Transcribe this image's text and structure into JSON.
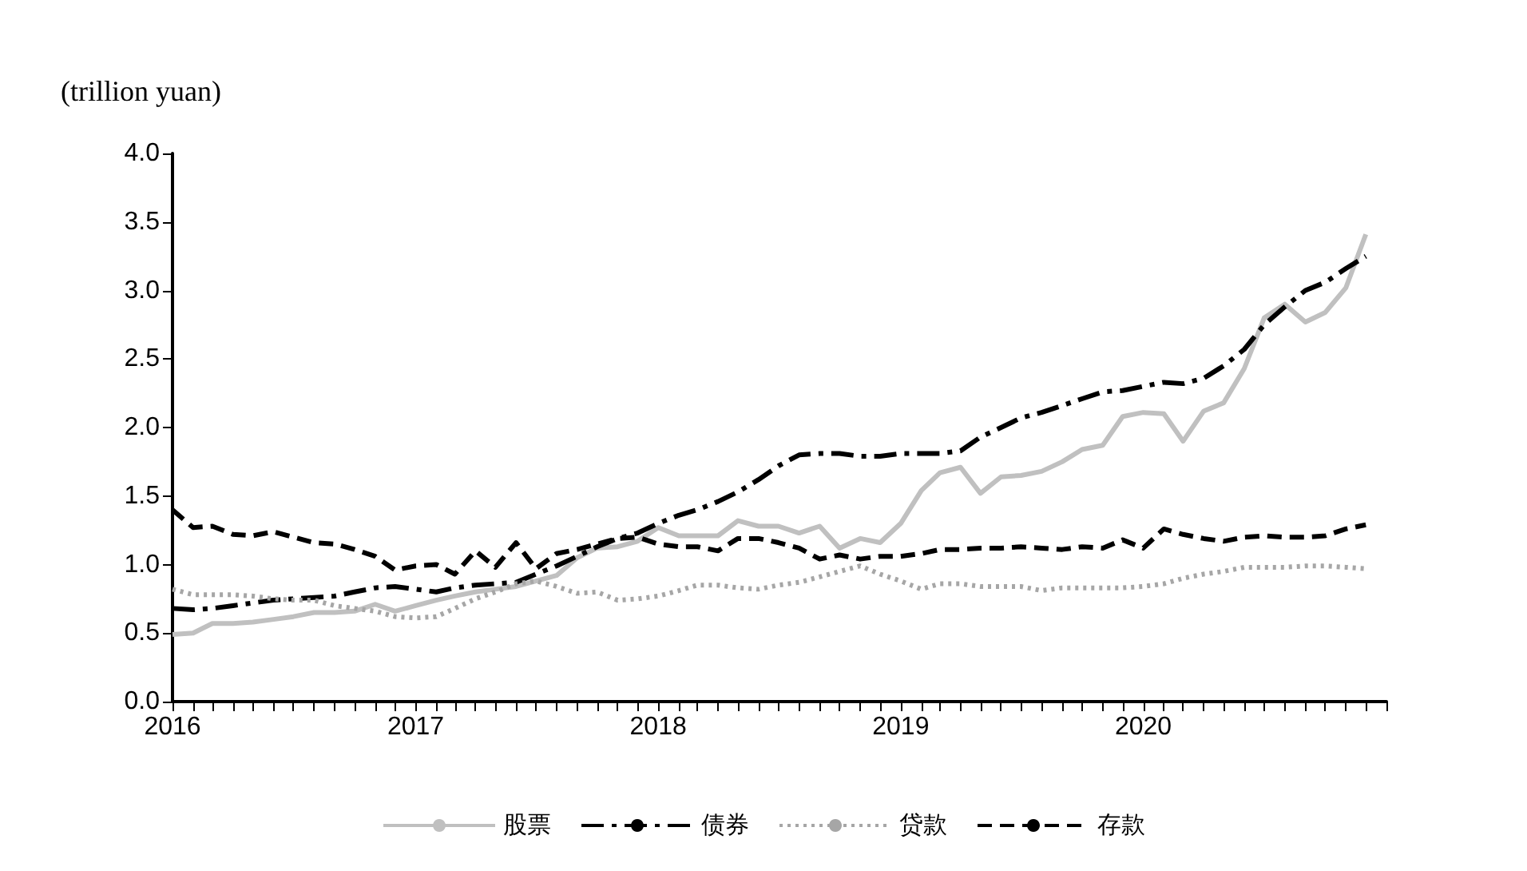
{
  "chart_data": {
    "type": "line",
    "ylabel": "(trillion yuan)",
    "x": [
      "2016-01",
      "2016-02",
      "2016-03",
      "2016-04",
      "2016-05",
      "2016-06",
      "2016-07",
      "2016-08",
      "2016-09",
      "2016-10",
      "2016-11",
      "2016-12",
      "2017-01",
      "2017-02",
      "2017-03",
      "2017-04",
      "2017-05",
      "2017-06",
      "2017-07",
      "2017-08",
      "2017-09",
      "2017-10",
      "2017-11",
      "2017-12",
      "2018-01",
      "2018-02",
      "2018-03",
      "2018-04",
      "2018-05",
      "2018-06",
      "2018-07",
      "2018-08",
      "2018-09",
      "2018-10",
      "2018-11",
      "2018-12",
      "2019-01",
      "2019-02",
      "2019-03",
      "2019-04",
      "2019-05",
      "2019-06",
      "2019-07",
      "2019-08",
      "2019-09",
      "2019-10",
      "2019-11",
      "2019-12",
      "2020-01",
      "2020-02",
      "2020-03",
      "2020-04",
      "2020-05",
      "2020-06",
      "2020-07",
      "2020-08",
      "2020-09",
      "2020-10",
      "2020-11",
      "2020-12"
    ],
    "series": [
      {
        "name": "股票",
        "color": "#c0c0c0",
        "line_style": "solid",
        "values": [
          0.49,
          0.5,
          0.57,
          0.57,
          0.58,
          0.6,
          0.62,
          0.65,
          0.65,
          0.66,
          0.71,
          0.66,
          0.7,
          0.74,
          0.77,
          0.8,
          0.82,
          0.84,
          0.88,
          0.92,
          1.05,
          1.12,
          1.13,
          1.17,
          1.27,
          1.21,
          1.21,
          1.21,
          1.32,
          1.28,
          1.28,
          1.23,
          1.28,
          1.12,
          1.19,
          1.16,
          1.3,
          1.54,
          1.67,
          1.71,
          1.52,
          1.64,
          1.65,
          1.68,
          1.75,
          1.84,
          1.87,
          2.08,
          2.11,
          2.1,
          1.9,
          2.12,
          2.18,
          2.43,
          2.8,
          2.9,
          2.77,
          2.84,
          3.02,
          3.41
        ]
      },
      {
        "name": "债券",
        "color": "#000000",
        "line_style": "dashdot",
        "values": [
          0.68,
          0.67,
          0.68,
          0.7,
          0.72,
          0.74,
          0.75,
          0.76,
          0.77,
          0.8,
          0.83,
          0.84,
          0.82,
          0.8,
          0.83,
          0.85,
          0.86,
          0.87,
          0.93,
          0.99,
          1.06,
          1.13,
          1.19,
          1.23,
          1.3,
          1.36,
          1.4,
          1.46,
          1.53,
          1.62,
          1.72,
          1.8,
          1.81,
          1.81,
          1.79,
          1.79,
          1.81,
          1.81,
          1.81,
          1.83,
          1.93,
          2.0,
          2.07,
          2.11,
          2.16,
          2.21,
          2.26,
          2.27,
          2.3,
          2.33,
          2.32,
          2.36,
          2.45,
          2.57,
          2.75,
          2.88,
          3.0,
          3.06,
          3.16,
          3.25
        ]
      },
      {
        "name": "贷款",
        "color": "#a6a6a6",
        "line_style": "dotted",
        "values": [
          0.82,
          0.78,
          0.78,
          0.78,
          0.77,
          0.75,
          0.74,
          0.74,
          0.7,
          0.68,
          0.66,
          0.62,
          0.61,
          0.62,
          0.68,
          0.75,
          0.8,
          0.86,
          0.88,
          0.84,
          0.79,
          0.8,
          0.74,
          0.75,
          0.77,
          0.81,
          0.85,
          0.85,
          0.83,
          0.82,
          0.85,
          0.87,
          0.91,
          0.95,
          0.99,
          0.93,
          0.88,
          0.82,
          0.86,
          0.86,
          0.84,
          0.84,
          0.84,
          0.81,
          0.83,
          0.83,
          0.83,
          0.83,
          0.84,
          0.86,
          0.9,
          0.93,
          0.95,
          0.98,
          0.98,
          0.98,
          0.99,
          0.99,
          0.98,
          0.97
        ]
      },
      {
        "name": "存款",
        "color": "#000000",
        "line_style": "dashed",
        "values": [
          1.4,
          1.27,
          1.28,
          1.22,
          1.21,
          1.24,
          1.2,
          1.16,
          1.15,
          1.11,
          1.06,
          0.96,
          0.99,
          1.0,
          0.93,
          1.1,
          0.98,
          1.16,
          0.97,
          1.08,
          1.11,
          1.15,
          1.19,
          1.2,
          1.15,
          1.13,
          1.13,
          1.1,
          1.19,
          1.19,
          1.16,
          1.12,
          1.04,
          1.07,
          1.04,
          1.06,
          1.06,
          1.08,
          1.11,
          1.11,
          1.12,
          1.12,
          1.13,
          1.12,
          1.11,
          1.13,
          1.12,
          1.18,
          1.12,
          1.26,
          1.22,
          1.19,
          1.17,
          1.2,
          1.21,
          1.2,
          1.2,
          1.21,
          1.26,
          1.29
        ]
      }
    ],
    "xlim": [
      "2016-01",
      "2021-01"
    ],
    "xticks": [
      "2016",
      "2017",
      "2018",
      "2019",
      "2020"
    ],
    "ylim": [
      0,
      4
    ],
    "yticks": [
      {
        "value": 0,
        "label": "0.0"
      },
      {
        "value": 0.5,
        "label": "0.5"
      },
      {
        "value": 1,
        "label": "1.0"
      },
      {
        "value": 1.5,
        "label": "1.5"
      },
      {
        "value": 2,
        "label": "2.0"
      },
      {
        "value": 2.5,
        "label": "2.5"
      },
      {
        "value": 3,
        "label": "3.0"
      },
      {
        "value": 3.5,
        "label": "3.5"
      },
      {
        "value": 4,
        "label": "4.0"
      }
    ],
    "grid": false,
    "legend": "bottom",
    "marker": "none"
  }
}
